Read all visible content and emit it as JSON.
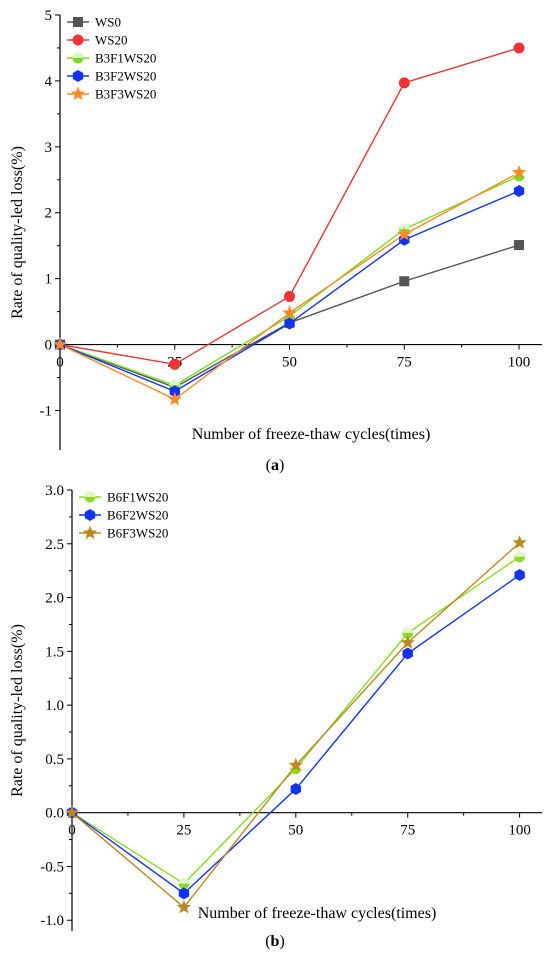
{
  "chart_data": [
    {
      "type": "line",
      "panel_label": "a",
      "xlabel": "Number of freeze-thaw cycles(times)",
      "ylabel": "Rate of quality-led loss(%)",
      "x": [
        0,
        25,
        50,
        75,
        100
      ],
      "xticks": [
        "0",
        "25",
        "50",
        "75",
        "100"
      ],
      "yticks": [
        "-1",
        "0",
        "1",
        "2",
        "3",
        "4",
        "5"
      ],
      "ylim": [
        -1.6,
        5
      ],
      "xlim": [
        0,
        105
      ],
      "legend_position": "top-left",
      "series": [
        {
          "name": "WS0",
          "color": "#555555",
          "marker": "square",
          "values": [
            0,
            -0.65,
            0.33,
            0.96,
            1.51
          ]
        },
        {
          "name": "WS20",
          "color": "#ee3333",
          "marker": "circle",
          "values": [
            0,
            -0.3,
            0.73,
            3.97,
            4.5
          ]
        },
        {
          "name": "B3F1WS20",
          "color": "#77dd22",
          "marker": "half-circle",
          "values": [
            0,
            -0.62,
            0.43,
            1.75,
            2.56
          ]
        },
        {
          "name": "B3F2WS20",
          "color": "#1133ee",
          "marker": "hexagon",
          "values": [
            0,
            -0.71,
            0.32,
            1.59,
            2.33
          ]
        },
        {
          "name": "B3F3WS20",
          "color": "#ff8822",
          "marker": "star",
          "values": [
            0,
            -0.83,
            0.48,
            1.67,
            2.61
          ]
        }
      ]
    },
    {
      "type": "line",
      "panel_label": "b",
      "xlabel": "Number of freeze-thaw cycles(times)",
      "ylabel": "Rate of quality-led loss(%)",
      "x": [
        0,
        25,
        50,
        75,
        100
      ],
      "xticks": [
        "0",
        "25",
        "50",
        "75",
        "100"
      ],
      "yticks": [
        "-1.0",
        "-0.5",
        "0.0",
        "0.5",
        "1.0",
        "1.5",
        "2.0",
        "2.5",
        "3.0"
      ],
      "ylim": [
        -1.1,
        3.0
      ],
      "xlim": [
        0,
        105
      ],
      "legend_position": "top-left",
      "series": [
        {
          "name": "B6F1WS20",
          "color": "#88dd22",
          "marker": "half-circle",
          "values": [
            0,
            -0.66,
            0.41,
            1.67,
            2.38
          ]
        },
        {
          "name": "B6F2WS20",
          "color": "#1133ee",
          "marker": "hexagon",
          "values": [
            0,
            -0.75,
            0.22,
            1.48,
            2.21
          ]
        },
        {
          "name": "B6F3WS20",
          "color": "#bb8822",
          "marker": "star",
          "values": [
            0,
            -0.88,
            0.44,
            1.58,
            2.51
          ]
        }
      ]
    }
  ]
}
